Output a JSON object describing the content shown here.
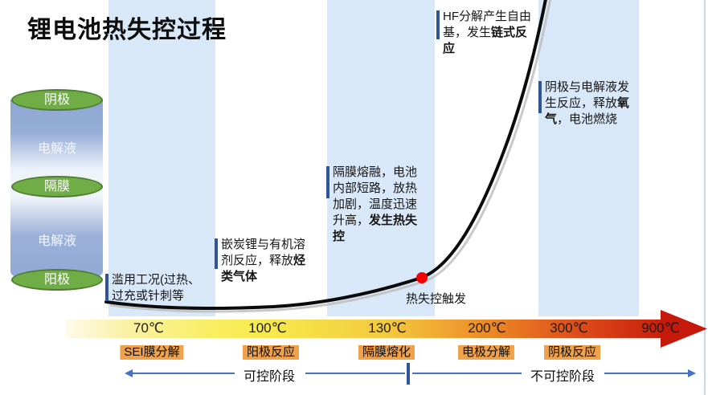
{
  "title": "锂电池热失控过程",
  "colors": {
    "band": "#D9E8F8",
    "annotation_bar": "#2F5597",
    "stage_chip_bg": "#EFA14B",
    "phase_line": "#4472C4",
    "curve": "#0b0b0b",
    "curve_shadow": "#bcbcbc",
    "dot": "#F30000",
    "battery_green": "#70AD47",
    "battery_green_border": "#507E32",
    "arrowhead_red": "#C5190B"
  },
  "battery": {
    "layers": [
      {
        "type": "electrode",
        "label": "阴极"
      },
      {
        "type": "electrolyte",
        "label": "电解液"
      },
      {
        "type": "separator",
        "label": "隔膜"
      },
      {
        "type": "electrolyte",
        "label": "电解液"
      },
      {
        "type": "electrode",
        "label": "阳极"
      }
    ]
  },
  "annotations": [
    {
      "segments": [
        {
          "text": "滥用工况(过热、过充或针刺等",
          "bold": false
        }
      ]
    },
    {
      "segments": [
        {
          "text": "嵌炭锂与有机溶剂反应，释放",
          "bold": false
        },
        {
          "text": "烃类气体",
          "bold": true
        }
      ]
    },
    {
      "segments": [
        {
          "text": "隔膜熔融，电池内部短路，放热加剧，温度迅速升高，",
          "bold": false
        },
        {
          "text": "发生热失控",
          "bold": true
        }
      ]
    },
    {
      "segments": [
        {
          "text": "HF分解产生自由基，发生",
          "bold": false
        },
        {
          "text": "链式反应",
          "bold": true
        }
      ]
    },
    {
      "segments": [
        {
          "text": "阴极与电解液发生反应，释放",
          "bold": false
        },
        {
          "text": "氧气",
          "bold": true
        },
        {
          "text": "，电池燃烧",
          "bold": false
        }
      ]
    }
  ],
  "trigger_label": "热失控触发",
  "axis": {
    "temperatures": [
      "70℃",
      "100℃",
      "130℃",
      "200℃",
      "300℃",
      "900℃"
    ],
    "stages": [
      "SEI膜分解",
      "阳极反应",
      "隔膜熔化",
      "电极分解",
      "阴极反应"
    ]
  },
  "phases": {
    "controllable": "可控阶段",
    "uncontrollable": "不可控阶段"
  }
}
